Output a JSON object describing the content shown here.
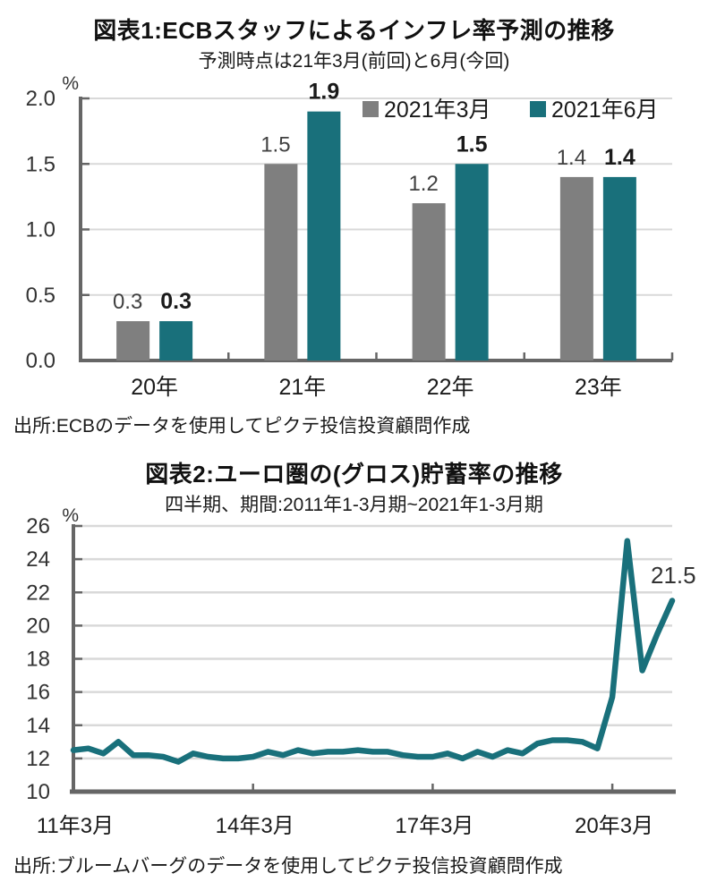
{
  "colors": {
    "teal": "#19707B",
    "gray": "#7F7F7F",
    "axis": "#666666",
    "grid": "#D9D9D9",
    "text": "#1A1A1A",
    "tick_text": "#333333",
    "value_label_gray": "#404040"
  },
  "chart_data": [
    {
      "type": "bar",
      "title": "図表1:ECBスタッフによるインフレ率予測の推移",
      "subtitle": "予測時点は21年3月(前回)と6月(今回)",
      "unit": "%",
      "categories": [
        "20年",
        "21年",
        "22年",
        "23年"
      ],
      "series": [
        {
          "name": "2021年3月",
          "color": "#7F7F7F",
          "values": [
            0.3,
            1.5,
            1.2,
            1.4
          ]
        },
        {
          "name": "2021年6月",
          "color": "#19707B",
          "values": [
            0.3,
            1.9,
            1.5,
            1.4
          ]
        }
      ],
      "ylim": [
        0.0,
        2.0
      ],
      "y_tick_labels": [
        "0.0",
        "0.5",
        "1.0",
        "1.5",
        "2.0"
      ],
      "grid": true,
      "legend_position": "top-right",
      "value_labels": true,
      "source": "出所:ECBのデータを使用してピクテ投信投資顧問作成"
    },
    {
      "type": "line",
      "title": "図表2:ユーロ圏の(グロス)貯蓄率の推移",
      "subtitle": "四半期、期間:2011年1-3月期~2021年1-3月期",
      "unit": "%",
      "color": "#19707B",
      "x_tick_labels": [
        "11年3月",
        "14年3月",
        "17年3月",
        "20年3月"
      ],
      "x_tick_indices": [
        0,
        12,
        24,
        36
      ],
      "values": [
        12.5,
        12.6,
        12.3,
        13.0,
        12.2,
        12.2,
        12.1,
        11.8,
        12.3,
        12.1,
        12.0,
        12.0,
        12.1,
        12.4,
        12.2,
        12.5,
        12.3,
        12.4,
        12.4,
        12.5,
        12.4,
        12.4,
        12.2,
        12.1,
        12.1,
        12.3,
        12.0,
        12.4,
        12.1,
        12.5,
        12.3,
        12.9,
        13.1,
        13.1,
        13.0,
        12.6,
        15.7,
        25.1,
        17.3,
        19.5,
        21.5
      ],
      "ylim": [
        10,
        26
      ],
      "y_tick_labels": [
        "10",
        "12",
        "14",
        "16",
        "18",
        "20",
        "22",
        "24",
        "26"
      ],
      "grid": true,
      "end_label": "21.5",
      "source": "出所:ブルームバーグのデータを使用してピクテ投信投資顧問作成"
    }
  ]
}
